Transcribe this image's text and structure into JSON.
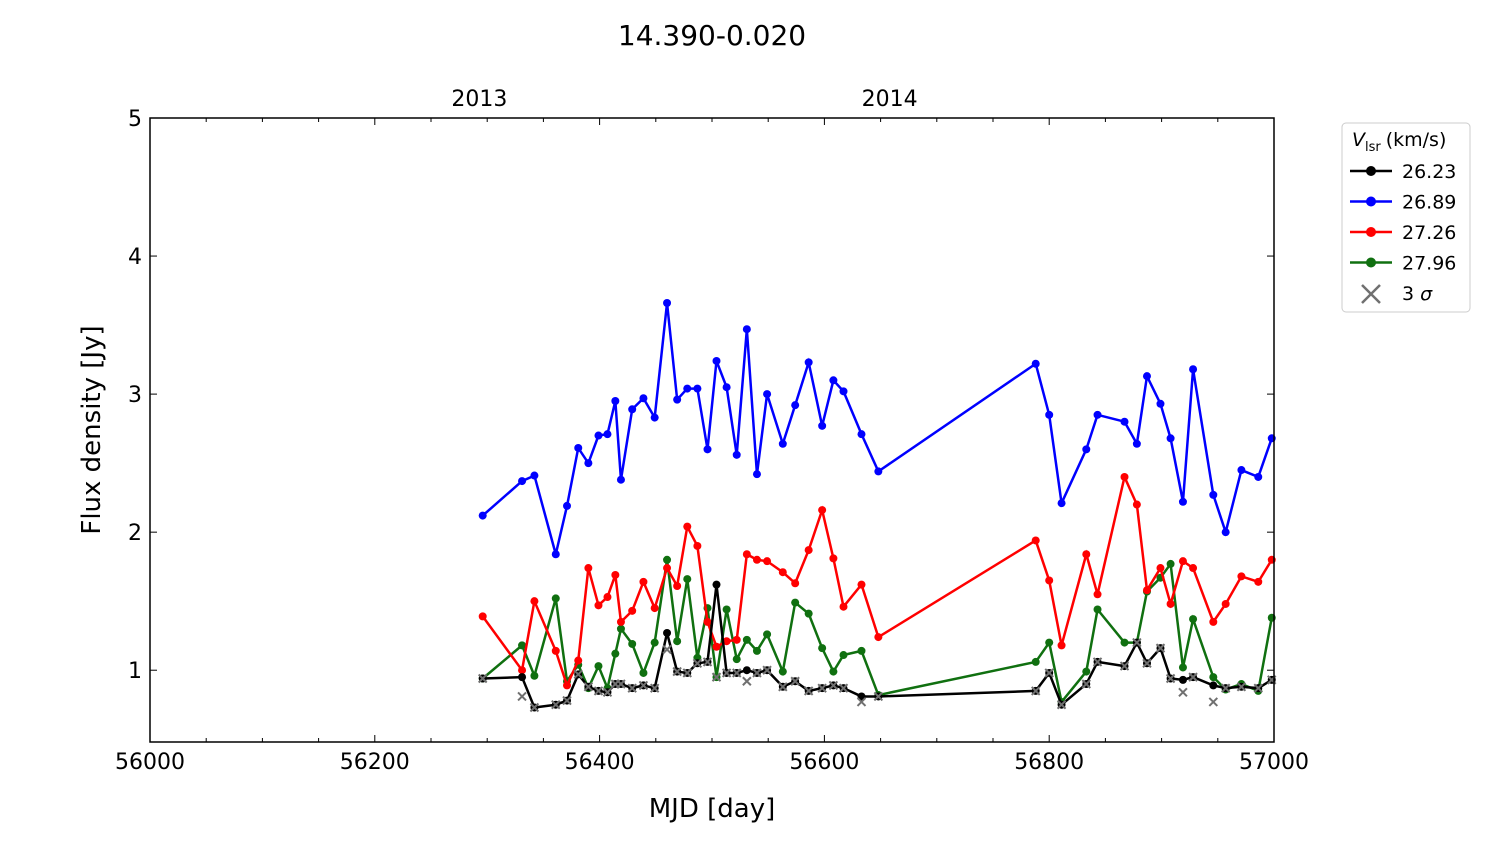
{
  "chart_data": {
    "type": "line",
    "title": "14.390-0.020",
    "xlabel": "MJD [day]",
    "ylabel": "Flux density [Jy]",
    "xlim": [
      56000,
      57000
    ],
    "ylim": [
      0.48,
      5
    ],
    "xticks": [
      56000,
      56200,
      56400,
      56600,
      56800,
      57000
    ],
    "yticks": [
      1,
      2,
      3,
      4,
      5
    ],
    "top_axis": {
      "ticks": [
        {
          "label": "2013",
          "mjd": 56293
        },
        {
          "label": "2014",
          "mjd": 56658
        }
      ]
    },
    "legend": {
      "title": "V",
      "title_sub": "lsr",
      "title_unit": "(km/s)",
      "placement": "outside-right",
      "sigma_label": "3 σ"
    },
    "x": [
      56296,
      56331,
      56342,
      56361,
      56371,
      56381,
      56390,
      56399,
      56407,
      56414,
      56419,
      56429,
      56439,
      56449,
      56460,
      56469,
      56478,
      56487,
      56496,
      56504,
      56513,
      56522,
      56531,
      56540,
      56549,
      56563,
      56574,
      56586,
      56598,
      56608,
      56617,
      56633,
      56648,
      56788,
      56800,
      56811,
      56833,
      56843,
      56867,
      56878,
      56887,
      56899,
      56908,
      56919,
      56928,
      56946,
      56957,
      56971,
      56986,
      56998
    ],
    "series": [
      {
        "name": "26.23",
        "color": "#000000",
        "values": [
          0.94,
          0.95,
          0.73,
          0.75,
          0.78,
          0.97,
          0.88,
          0.85,
          0.84,
          0.9,
          0.9,
          0.87,
          0.89,
          0.87,
          1.27,
          0.99,
          0.98,
          1.05,
          1.06,
          1.62,
          0.98,
          0.98,
          1.0,
          0.98,
          1.0,
          0.88,
          0.92,
          0.85,
          0.87,
          0.89,
          0.87,
          0.81,
          0.81,
          0.85,
          0.98,
          0.75,
          0.9,
          1.06,
          1.03,
          1.2,
          1.05,
          1.16,
          0.94,
          0.93,
          0.95,
          0.89,
          0.87,
          0.88,
          0.87,
          0.93
        ]
      },
      {
        "name": "26.89",
        "color": "#0000ff",
        "values": [
          2.12,
          2.37,
          2.41,
          1.84,
          2.19,
          2.61,
          2.5,
          2.7,
          2.71,
          2.95,
          2.38,
          2.89,
          2.97,
          2.83,
          3.66,
          2.96,
          3.04,
          3.04,
          2.6,
          3.24,
          3.05,
          2.56,
          3.47,
          2.42,
          3.0,
          2.64,
          2.92,
          3.23,
          2.77,
          3.1,
          3.02,
          2.71,
          2.44,
          3.22,
          2.85,
          2.21,
          2.6,
          2.85,
          2.8,
          2.64,
          3.13,
          2.93,
          2.68,
          2.22,
          3.18,
          2.27,
          2.0,
          2.45,
          2.4,
          2.68
        ]
      },
      {
        "name": "27.26",
        "color": "#ff0000",
        "values": [
          1.39,
          1.0,
          1.5,
          1.14,
          0.89,
          1.07,
          1.74,
          1.47,
          1.53,
          1.69,
          1.35,
          1.43,
          1.64,
          1.45,
          1.74,
          1.61,
          2.04,
          1.9,
          1.35,
          1.17,
          1.21,
          1.22,
          1.84,
          1.8,
          1.79,
          1.71,
          1.63,
          1.87,
          2.16,
          1.81,
          1.46,
          1.62,
          1.24,
          1.94,
          1.65,
          1.18,
          1.84,
          1.55,
          2.4,
          2.2,
          1.58,
          1.74,
          1.48,
          1.79,
          1.74,
          1.35,
          1.48,
          1.68,
          1.64,
          1.8
        ]
      },
      {
        "name": "27.96",
        "color": "#107010",
        "values": [
          0.94,
          1.18,
          0.96,
          1.52,
          0.92,
          1.04,
          0.87,
          1.03,
          0.87,
          1.12,
          1.3,
          1.19,
          0.98,
          1.2,
          1.8,
          1.21,
          1.66,
          1.09,
          1.45,
          0.95,
          1.44,
          1.08,
          1.22,
          1.14,
          1.26,
          0.99,
          1.49,
          1.41,
          1.16,
          0.99,
          1.11,
          1.14,
          0.82,
          1.06,
          1.2,
          0.77,
          0.99,
          1.44,
          1.2,
          1.2,
          1.57,
          1.67,
          1.77,
          1.02,
          1.37,
          0.95,
          0.86,
          0.9,
          0.85,
          1.38
        ]
      }
    ],
    "sigma3": {
      "name": "3 σ",
      "color": "#707070",
      "values": [
        0.94,
        0.81,
        0.73,
        0.75,
        0.78,
        0.97,
        0.88,
        0.85,
        0.84,
        0.9,
        0.9,
        0.87,
        0.89,
        0.87,
        1.15,
        0.99,
        0.98,
        1.05,
        1.06,
        0.95,
        0.98,
        0.98,
        0.92,
        0.98,
        1.0,
        0.88,
        0.92,
        0.85,
        0.87,
        0.89,
        0.87,
        0.77,
        0.81,
        0.85,
        0.98,
        0.75,
        0.9,
        1.06,
        1.03,
        1.2,
        1.05,
        1.16,
        0.94,
        0.84,
        0.95,
        0.77,
        0.87,
        0.88,
        0.87,
        0.93
      ]
    }
  }
}
